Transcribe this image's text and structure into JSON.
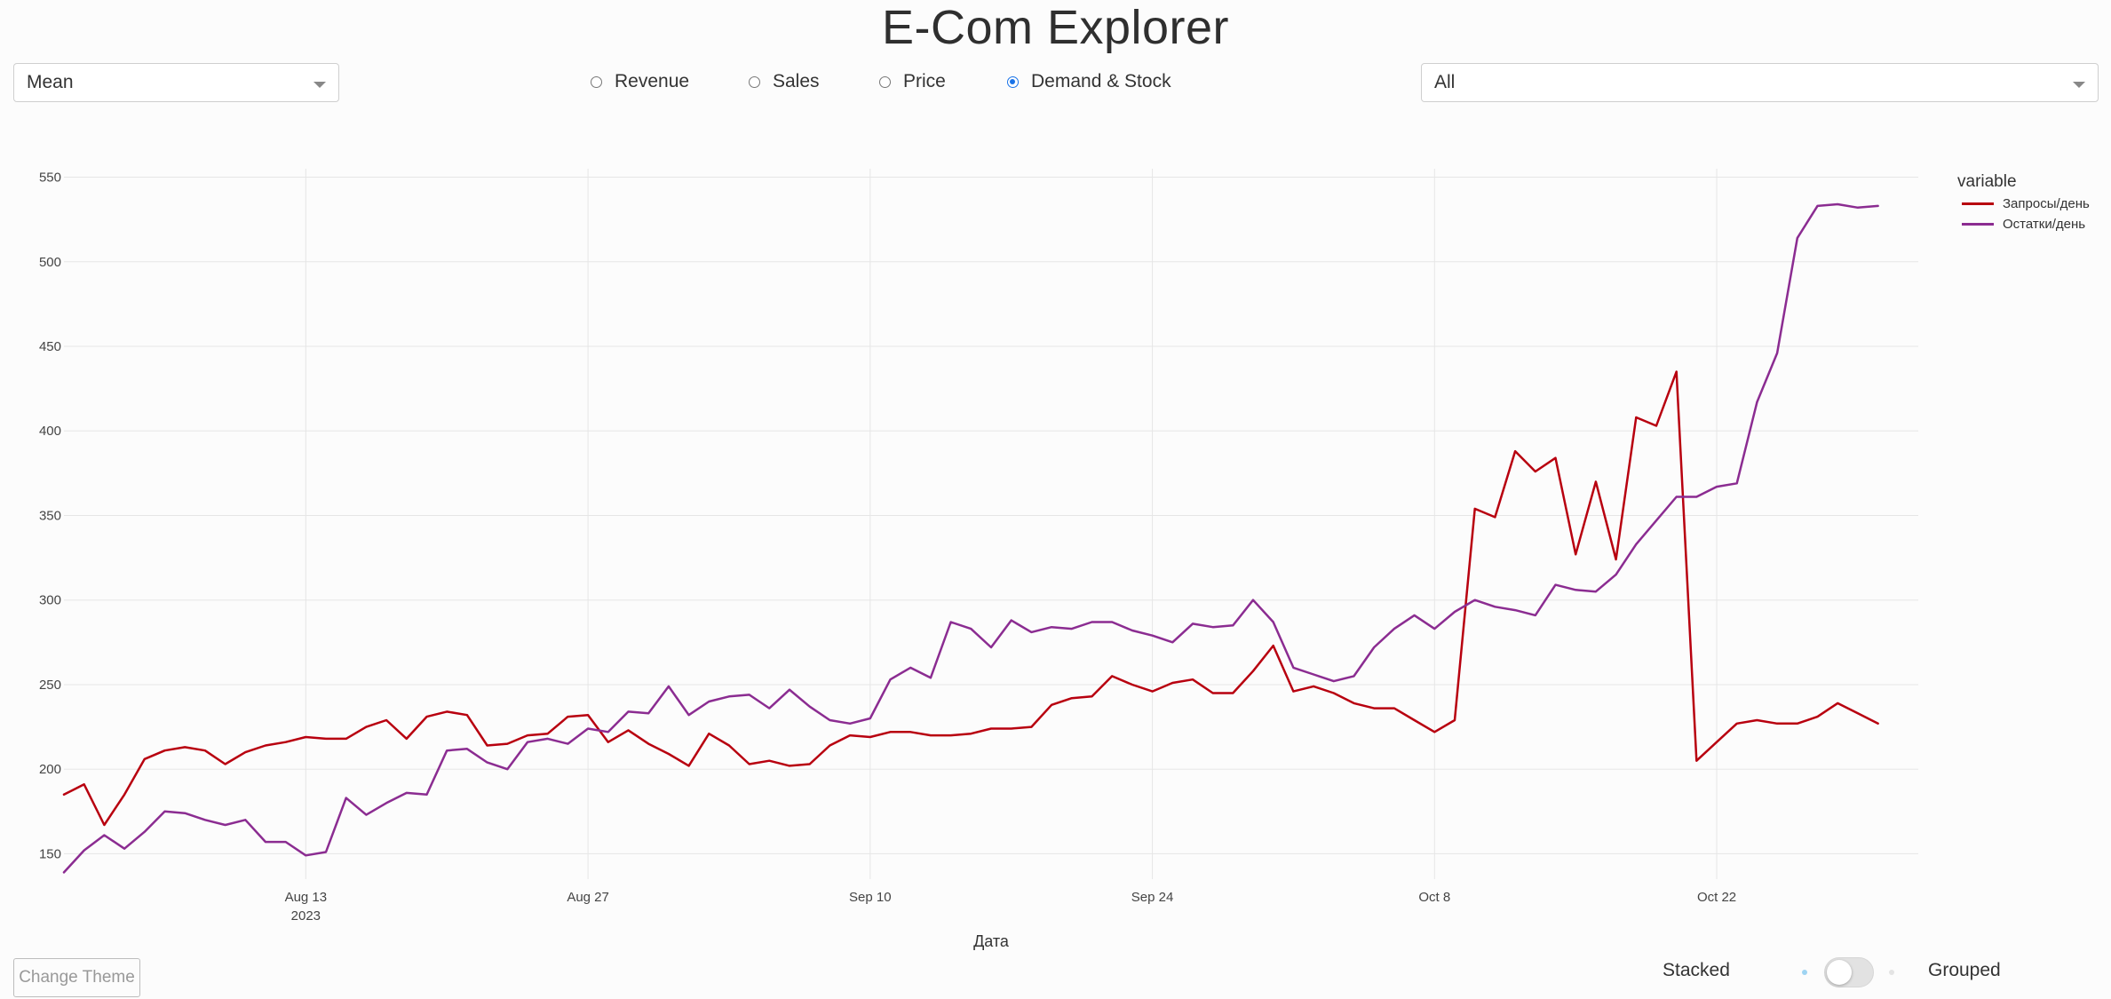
{
  "app": {
    "title": "E-Com Explorer"
  },
  "controls": {
    "aggregation_value": "Mean",
    "category_value": "All",
    "radio_options": [
      {
        "label": "Revenue",
        "checked": false
      },
      {
        "label": "Sales",
        "checked": false
      },
      {
        "label": "Price",
        "checked": false
      },
      {
        "label": "Demand & Stock",
        "checked": true
      }
    ],
    "theme_button": "Change Theme",
    "toggle": {
      "left_label": "Stacked",
      "right_label": "Grouped",
      "on": false
    }
  },
  "colors": {
    "accent": "#1a73e8",
    "series_1": "#b8000f",
    "series_2": "#8b2c91"
  },
  "chart_data": {
    "type": "line",
    "xlabel": "Дата",
    "ylabel": "",
    "legend_title": "variable",
    "legend_placement": "top-right",
    "grid": true,
    "x_start": "2023-08-01",
    "x_end": "2023-11-01",
    "ylim": [
      135,
      555
    ],
    "y_ticks": [
      150,
      200,
      250,
      300,
      350,
      400,
      450,
      500,
      550
    ],
    "x_ticks": [
      {
        "date": "2023-08-13",
        "label": "Aug 13",
        "sublabel": "2023"
      },
      {
        "date": "2023-08-27",
        "label": "Aug 27",
        "sublabel": ""
      },
      {
        "date": "2023-09-10",
        "label": "Sep 10",
        "sublabel": ""
      },
      {
        "date": "2023-09-24",
        "label": "Sep 24",
        "sublabel": ""
      },
      {
        "date": "2023-10-08",
        "label": "Oct 8",
        "sublabel": ""
      },
      {
        "date": "2023-10-22",
        "label": "Oct 22",
        "sublabel": ""
      }
    ],
    "series": [
      {
        "name": "Запросы/день",
        "color": "#b8000f",
        "values": [
          185,
          191,
          167,
          185,
          206,
          211,
          213,
          211,
          203,
          210,
          214,
          216,
          219,
          218,
          218,
          225,
          229,
          218,
          231,
          234,
          232,
          214,
          215,
          220,
          221,
          231,
          232,
          216,
          223,
          215,
          209,
          202,
          221,
          214,
          203,
          205,
          202,
          203,
          214,
          220,
          219,
          222,
          222,
          220,
          220,
          221,
          224,
          224,
          225,
          238,
          242,
          243,
          255,
          250,
          246,
          251,
          253,
          245,
          245,
          258,
          273,
          246,
          249,
          245,
          239,
          236,
          236,
          229,
          222,
          229,
          354,
          349,
          388,
          376,
          384,
          327,
          370,
          324,
          408,
          403,
          435,
          205,
          216,
          227,
          229,
          227,
          227,
          231,
          239,
          233,
          227
        ]
      },
      {
        "name": "Остатки/день",
        "color": "#8b2c91",
        "values": [
          139,
          152,
          161,
          153,
          163,
          175,
          174,
          170,
          167,
          170,
          157,
          157,
          149,
          151,
          183,
          173,
          180,
          186,
          185,
          211,
          212,
          204,
          200,
          216,
          218,
          215,
          224,
          222,
          234,
          233,
          249,
          232,
          240,
          243,
          244,
          236,
          247,
          237,
          229,
          227,
          230,
          253,
          260,
          254,
          287,
          283,
          272,
          288,
          281,
          284,
          283,
          287,
          287,
          282,
          279,
          275,
          286,
          284,
          285,
          300,
          287,
          260,
          256,
          252,
          255,
          272,
          283,
          291,
          283,
          293,
          300,
          296,
          294,
          291,
          309,
          306,
          305,
          315,
          333,
          347,
          361,
          361,
          367,
          369,
          417,
          446,
          514,
          533,
          534,
          532,
          533
        ]
      }
    ]
  }
}
